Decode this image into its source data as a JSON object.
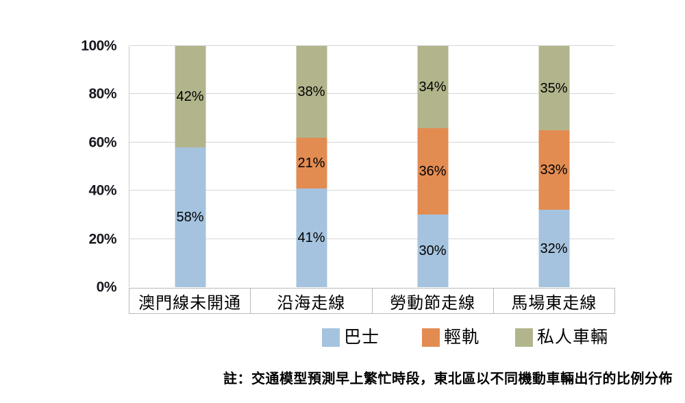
{
  "chart_data": {
    "type": "bar",
    "subtype": "stacked-100-percent",
    "title": "",
    "xlabel": "",
    "ylabel": "",
    "categories": [
      "澳門線未開通",
      "沿海走線",
      "勞動節走線",
      "馬場東走線"
    ],
    "series": [
      {
        "name": "巴士",
        "key": "bus",
        "color": "#A5C3DE",
        "values": [
          58,
          41,
          30,
          32
        ]
      },
      {
        "name": "輕軌",
        "key": "lrt",
        "color": "#E28C52",
        "values": [
          0,
          21,
          36,
          33
        ]
      },
      {
        "name": "私人車輛",
        "key": "private",
        "color": "#B2B58C",
        "values": [
          42,
          38,
          34,
          35
        ]
      }
    ],
    "y_ticks": [
      0,
      20,
      40,
      60,
      80,
      100
    ],
    "y_tick_suffix": "%",
    "ylim": [
      0,
      100
    ],
    "grid": true,
    "legend_position": "bottom",
    "data_label_suffix": "%"
  },
  "footnote": "註：交通模型預測早上繁忙時段，東北區以不同機動車輛出行的比例分佈",
  "styles": {
    "grid_color": "#D6D6D6",
    "axis_color": "#C9C9C9",
    "box_border_color": "#B9B9B9",
    "tick_label_color": "#17171F",
    "data_label_color": "#000000"
  }
}
